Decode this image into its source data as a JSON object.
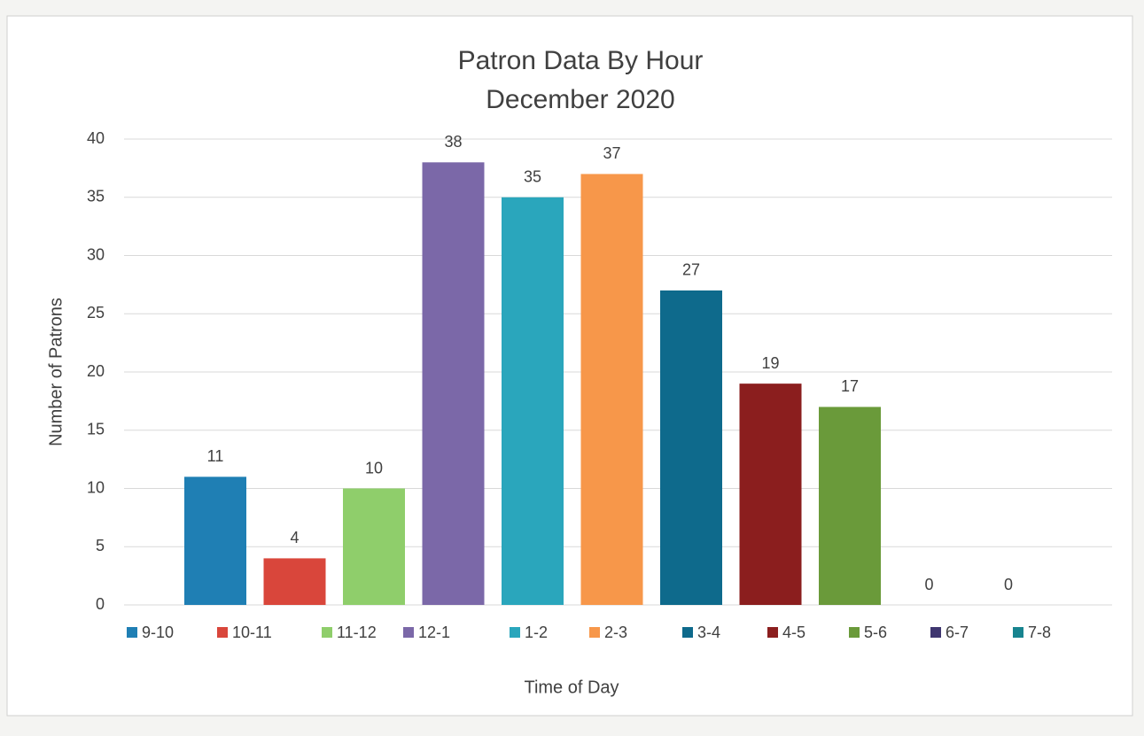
{
  "chart_data": {
    "type": "bar",
    "title": "Patron Data By Hour",
    "subtitle": "December 2020",
    "y_label": "Number of Patrons",
    "x_label": "Time of Day",
    "series": [
      {
        "name": "9-10",
        "color": "#1f7fb4",
        "values": [
          11
        ]
      },
      {
        "name": "10-11",
        "color": "#d9463b",
        "values": [
          4
        ]
      },
      {
        "name": "11-12",
        "color": "#8fce6b",
        "values": [
          10
        ]
      },
      {
        "name": "12-1",
        "color": "#7b68a8",
        "values": [
          38
        ]
      },
      {
        "name": "1-2",
        "color": "#2aa6bc",
        "values": [
          35
        ]
      },
      {
        "name": "2-3",
        "color": "#f7974a",
        "values": [
          37
        ]
      },
      {
        "name": "3-4",
        "color": "#0e6a8c",
        "values": [
          27
        ]
      },
      {
        "name": "4-5",
        "color": "#8b1e1e",
        "values": [
          19
        ]
      },
      {
        "name": "5-6",
        "color": "#6a9a3a",
        "values": [
          17
        ]
      },
      {
        "name": "6-7",
        "color": "#3f3670",
        "values": [
          0
        ]
      },
      {
        "name": "7-8",
        "color": "#17848f",
        "values": [
          0
        ]
      }
    ],
    "ylim": [
      0,
      40
    ],
    "yticks": [
      0,
      5,
      10,
      15,
      20,
      25,
      30,
      35,
      40
    ],
    "grid": true,
    "data_labels": true,
    "legend": "bottom"
  }
}
